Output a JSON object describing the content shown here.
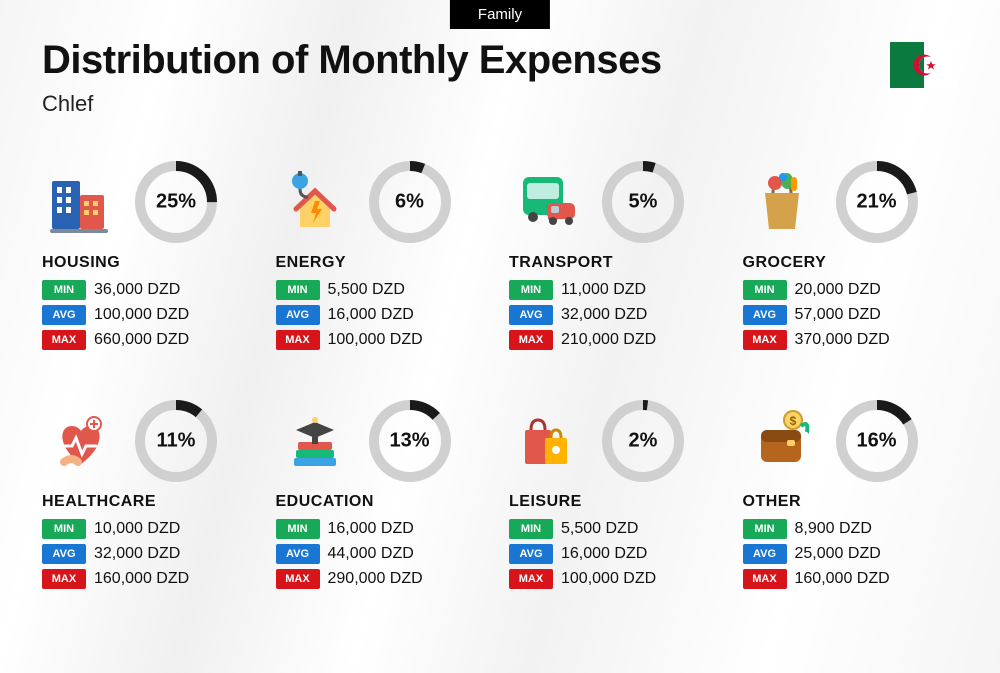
{
  "header": {
    "badge": "Family",
    "title": "Distribution of Monthly Expenses",
    "subtitle": "Chlef"
  },
  "flag": {
    "colors": {
      "green": "#0b7a3e",
      "white": "#ffffff",
      "red": "#d21034"
    }
  },
  "badges": {
    "min": {
      "label": "MIN",
      "color": "#17a858"
    },
    "avg": {
      "label": "AVG",
      "color": "#1976d2"
    },
    "max": {
      "label": "MAX",
      "color": "#d7141a"
    }
  },
  "donut": {
    "track_color": "#d0d0d0",
    "arc_color": "#1a1a1a",
    "radius": 36,
    "stroke": 10
  },
  "currency": "DZD",
  "categories": [
    {
      "name": "HOUSING",
      "percent": 25,
      "icon": "housing",
      "min": "36,000 DZD",
      "avg": "100,000 DZD",
      "max": "660,000 DZD"
    },
    {
      "name": "ENERGY",
      "percent": 6,
      "icon": "energy",
      "min": "5,500 DZD",
      "avg": "16,000 DZD",
      "max": "100,000 DZD"
    },
    {
      "name": "TRANSPORT",
      "percent": 5,
      "icon": "transport",
      "min": "11,000 DZD",
      "avg": "32,000 DZD",
      "max": "210,000 DZD"
    },
    {
      "name": "GROCERY",
      "percent": 21,
      "icon": "grocery",
      "min": "20,000 DZD",
      "avg": "57,000 DZD",
      "max": "370,000 DZD"
    },
    {
      "name": "HEALTHCARE",
      "percent": 11,
      "icon": "healthcare",
      "min": "10,000 DZD",
      "avg": "32,000 DZD",
      "max": "160,000 DZD"
    },
    {
      "name": "EDUCATION",
      "percent": 13,
      "icon": "education",
      "min": "16,000 DZD",
      "avg": "44,000 DZD",
      "max": "290,000 DZD"
    },
    {
      "name": "LEISURE",
      "percent": 2,
      "icon": "leisure",
      "min": "5,500 DZD",
      "avg": "16,000 DZD",
      "max": "100,000 DZD"
    },
    {
      "name": "OTHER",
      "percent": 16,
      "icon": "other",
      "min": "8,900 DZD",
      "avg": "25,000 DZD",
      "max": "160,000 DZD"
    }
  ]
}
